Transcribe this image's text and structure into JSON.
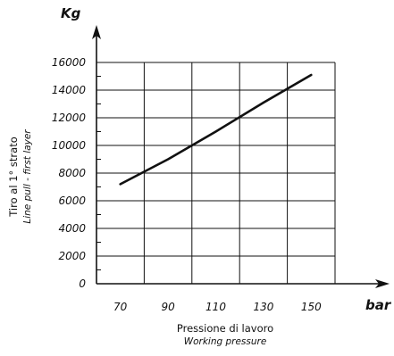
{
  "chart_data": {
    "type": "line",
    "y_unit": "Kg",
    "x_unit": "bar",
    "xlabel": "Pressione di lavoro",
    "xlabel_secondary": "Working pressure",
    "ylabel": "Tiro al 1° strato",
    "ylabel_secondary": "Line pull - first layer",
    "xlim": [
      60,
      160
    ],
    "ylim": [
      0,
      16000
    ],
    "x_ticks": [
      70,
      90,
      110,
      130,
      150
    ],
    "y_ticks": [
      0,
      2000,
      4000,
      6000,
      8000,
      10000,
      12000,
      14000,
      16000
    ],
    "grid": true,
    "x": [
      70,
      90,
      110,
      130,
      150
    ],
    "y": [
      7200,
      9000,
      11000,
      13100,
      15100
    ]
  }
}
